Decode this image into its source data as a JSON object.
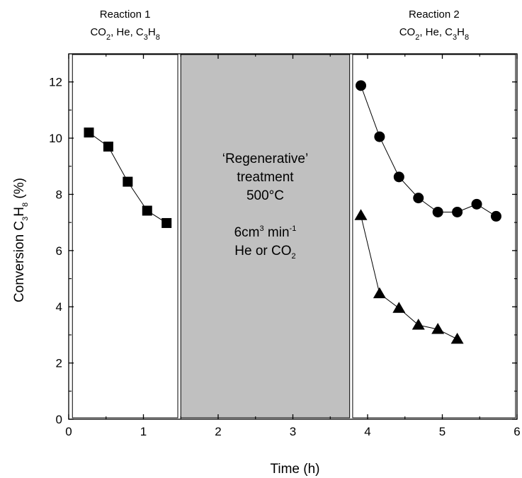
{
  "chart_data": {
    "type": "scatter",
    "xlabel": "Time (h)",
    "ylabel": {
      "prefix": "Conversion C",
      "sub1": "3",
      "mid": "H",
      "sub2": "8",
      "suffix": " (%)"
    },
    "xlim": [
      0,
      6
    ],
    "ylim": [
      0,
      13
    ],
    "x_ticks": [
      "0",
      "1",
      "2",
      "3",
      "4",
      "5",
      "6"
    ],
    "y_ticks": [
      "0",
      "2",
      "4",
      "6",
      "8",
      "10",
      "12"
    ],
    "grid": false,
    "series": [
      {
        "marker": "square",
        "points": [
          [
            0.27,
            10.2
          ],
          [
            0.53,
            9.7
          ],
          [
            0.79,
            8.45
          ],
          [
            1.05,
            7.42
          ],
          [
            1.31,
            6.98
          ]
        ]
      },
      {
        "marker": "circle",
        "points": [
          [
            3.91,
            11.87
          ],
          [
            4.16,
            10.05
          ],
          [
            4.42,
            8.62
          ],
          [
            4.68,
            7.87
          ],
          [
            4.94,
            7.37
          ],
          [
            5.2,
            7.37
          ],
          [
            5.46,
            7.65
          ],
          [
            5.72,
            7.22
          ]
        ]
      },
      {
        "marker": "triangle",
        "points": [
          [
            3.91,
            7.25
          ],
          [
            4.16,
            4.47
          ],
          [
            4.42,
            3.95
          ],
          [
            4.68,
            3.35
          ],
          [
            4.94,
            3.2
          ],
          [
            5.2,
            2.85
          ]
        ]
      }
    ],
    "regions": [
      {
        "x_range": [
          0.05,
          1.46
        ],
        "fill": "#ffffff",
        "header": {
          "title": "Reaction 1",
          "chem": [
            "CO",
            "2",
            ", He, C",
            "3",
            "H",
            "8"
          ]
        }
      },
      {
        "x_range": [
          1.5,
          3.76
        ],
        "fill": "#c0c0c0",
        "lines": [
          {
            "text": "‘Regenerative’"
          },
          {
            "text": "treatment"
          },
          {
            "text": "500°C"
          },
          {
            "text": ""
          },
          {
            "text": "6cm",
            "sup": "3",
            "after": " min",
            "sup2": "-1"
          },
          {
            "text": "He or CO",
            "sub": "2"
          }
        ]
      },
      {
        "x_range": [
          3.8,
          5.98
        ],
        "fill": "#ffffff",
        "header": {
          "title": "Reaction 2",
          "chem": [
            "CO",
            "2",
            ", He, C",
            "3",
            "H",
            "8"
          ]
        }
      }
    ]
  }
}
